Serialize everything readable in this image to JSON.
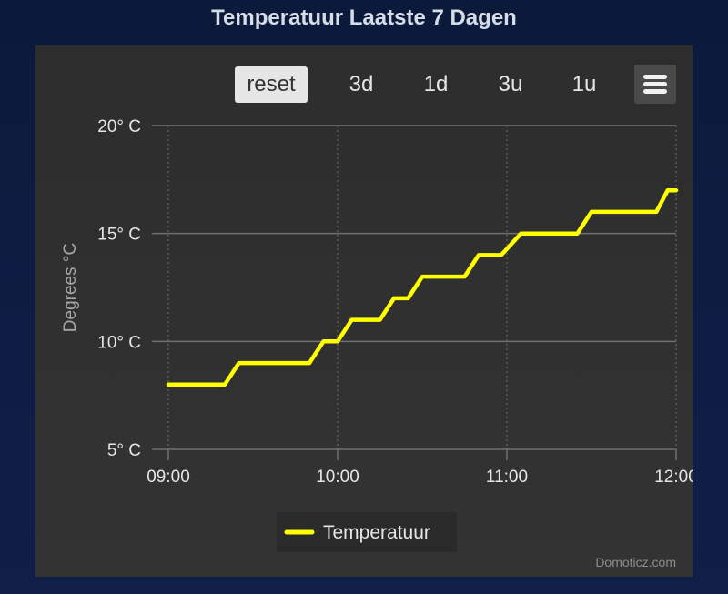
{
  "title": "Temperatuur Laatste 7 Dagen",
  "toolbar": {
    "buttons": [
      "reset",
      "3d",
      "1d",
      "3u",
      "1u"
    ],
    "active": "reset",
    "menu_icon": "hamburger-menu-icon"
  },
  "credits": "Domoticz.com",
  "colors": {
    "series": "#ffff00",
    "grid": "#707070",
    "text": "#e6e6e6",
    "axis_title": "#a6a6a6"
  },
  "chart_data": {
    "type": "line",
    "ylabel": "Degrees °C",
    "ylim": [
      5,
      20
    ],
    "yticks": [
      "5° C",
      "10° C",
      "15° C",
      "20° C"
    ],
    "xlim": [
      "09:00",
      "12:00"
    ],
    "xticks": [
      "09:00",
      "10:00",
      "11:00",
      "12:00"
    ],
    "legend": "bottom-center",
    "grid": true,
    "series": [
      {
        "name": "Temperatuur",
        "points": [
          [
            "09:00",
            8
          ],
          [
            "09:20",
            8
          ],
          [
            "09:25",
            9
          ],
          [
            "09:50",
            9
          ],
          [
            "09:55",
            10
          ],
          [
            "10:00",
            10
          ],
          [
            "10:05",
            11
          ],
          [
            "10:15",
            11
          ],
          [
            "10:20",
            12
          ],
          [
            "10:25",
            12
          ],
          [
            "10:30",
            13
          ],
          [
            "10:45",
            13
          ],
          [
            "10:50",
            14
          ],
          [
            "10:58",
            14
          ],
          [
            "11:05",
            15
          ],
          [
            "11:25",
            15
          ],
          [
            "11:30",
            16
          ],
          [
            "11:53",
            16
          ],
          [
            "11:57",
            17
          ],
          [
            "12:00",
            17
          ]
        ]
      }
    ]
  }
}
